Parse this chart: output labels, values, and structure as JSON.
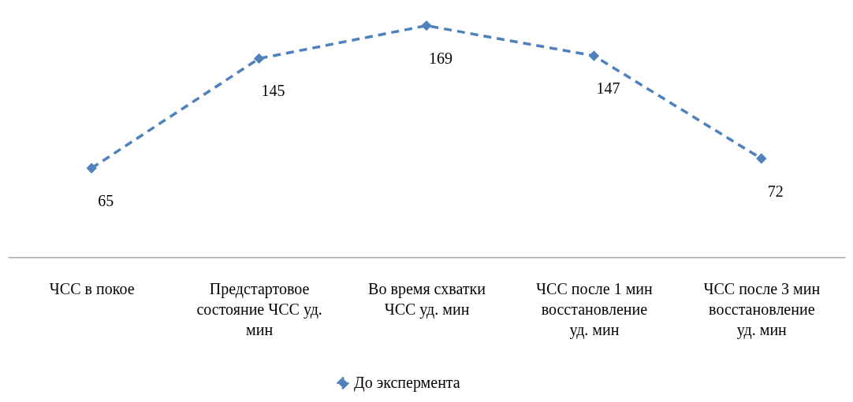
{
  "chart_data": {
    "type": "line",
    "categories": [
      "ЧСС в покое",
      "Предстартовое состояние ЧСС уд. мин",
      "Во время схватки ЧСС уд. мин",
      "ЧСС после 1 мин восстановление уд. мин",
      "ЧСС после 3 мин восстановление уд. мин"
    ],
    "series": [
      {
        "name": "До экспермента",
        "color": "#4f81bd",
        "values": [
          65,
          145,
          169,
          147,
          72
        ]
      }
    ],
    "data_labels": true,
    "legend": "bottom",
    "marker": "diamond",
    "line_style": "dashed",
    "grid": false
  }
}
